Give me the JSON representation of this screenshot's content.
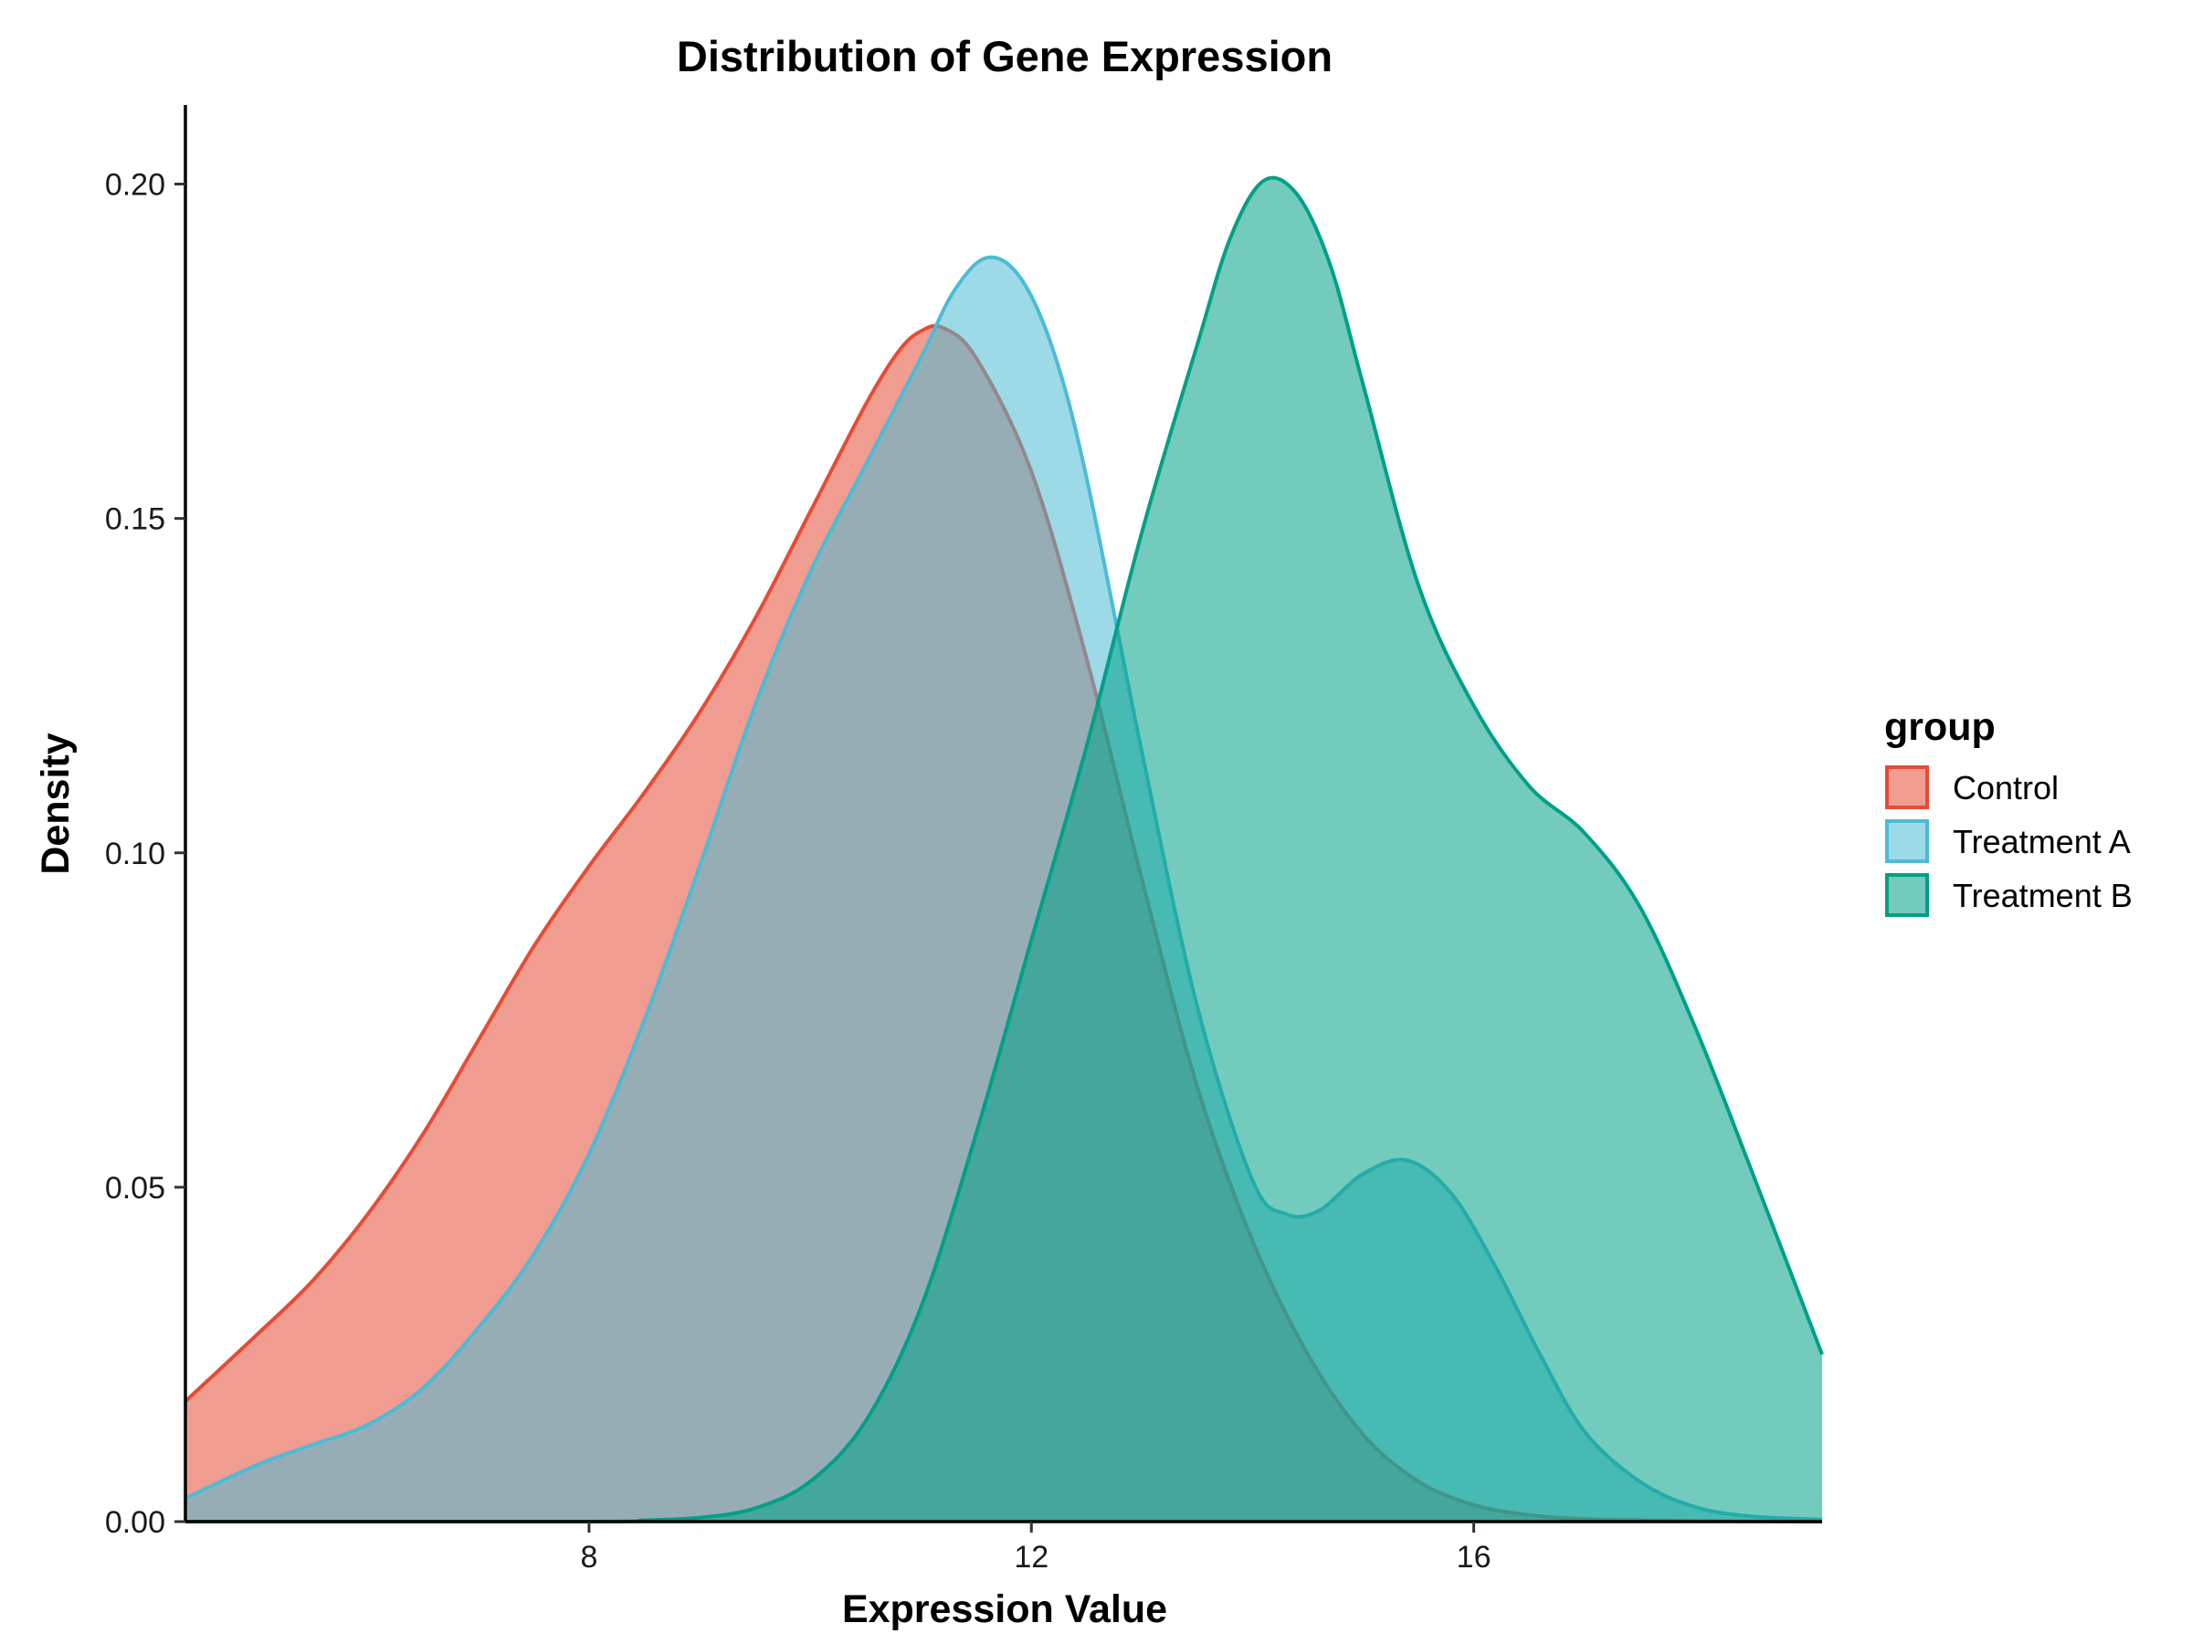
{
  "chart_data": {
    "type": "area",
    "subtype": "density",
    "title": "Distribution of Gene Expression",
    "xlabel": "Expression Value",
    "ylabel": "Density",
    "xlim": [
      4.35,
      19.15
    ],
    "ylim": [
      0,
      0.2125
    ],
    "x_ticks": [
      8,
      12,
      16
    ],
    "y_ticks": [
      0.0,
      0.05,
      0.1,
      0.15,
      0.2
    ],
    "y_tick_labels": [
      "0.00",
      "0.05",
      "0.10",
      "0.15",
      "0.20"
    ],
    "grid": false,
    "legend": {
      "title": "group",
      "position": "right"
    },
    "series": [
      {
        "name": "Control",
        "fill": "#E64B35",
        "stroke": "#E64B35",
        "opacity": 0.55,
        "points": [
          [
            4.35,
            0.018
          ],
          [
            5.0,
            0.028
          ],
          [
            5.5,
            0.036
          ],
          [
            6.0,
            0.046
          ],
          [
            6.5,
            0.058
          ],
          [
            7.0,
            0.072
          ],
          [
            7.5,
            0.086
          ],
          [
            8.0,
            0.098
          ],
          [
            8.5,
            0.109
          ],
          [
            9.0,
            0.121
          ],
          [
            9.5,
            0.135
          ],
          [
            10.0,
            0.151
          ],
          [
            10.5,
            0.167
          ],
          [
            10.8,
            0.175
          ],
          [
            11.0,
            0.178
          ],
          [
            11.2,
            0.1785
          ],
          [
            11.5,
            0.174
          ],
          [
            12.0,
            0.157
          ],
          [
            12.5,
            0.129
          ],
          [
            13.0,
            0.096
          ],
          [
            13.5,
            0.065
          ],
          [
            14.0,
            0.042
          ],
          [
            14.5,
            0.025
          ],
          [
            15.0,
            0.013
          ],
          [
            15.5,
            0.006
          ],
          [
            16.0,
            0.0025
          ],
          [
            16.5,
            0.001
          ],
          [
            17.0,
            0.0004
          ],
          [
            18.0,
            0.0001
          ],
          [
            19.15,
            0.0
          ]
        ]
      },
      {
        "name": "Treatment A",
        "fill": "#4DBBD5",
        "stroke": "#4DBBD5",
        "opacity": 0.55,
        "points": [
          [
            4.35,
            0.0035
          ],
          [
            5.0,
            0.0085
          ],
          [
            5.5,
            0.0115
          ],
          [
            6.0,
            0.0145
          ],
          [
            6.5,
            0.02
          ],
          [
            7.0,
            0.029
          ],
          [
            7.5,
            0.04
          ],
          [
            8.0,
            0.055
          ],
          [
            8.5,
            0.075
          ],
          [
            9.0,
            0.098
          ],
          [
            9.5,
            0.122
          ],
          [
            10.0,
            0.142
          ],
          [
            10.5,
            0.158
          ],
          [
            11.0,
            0.174
          ],
          [
            11.3,
            0.184
          ],
          [
            11.6,
            0.189
          ],
          [
            11.9,
            0.186
          ],
          [
            12.2,
            0.175
          ],
          [
            12.5,
            0.156
          ],
          [
            13.0,
            0.115
          ],
          [
            13.5,
            0.077
          ],
          [
            14.0,
            0.051
          ],
          [
            14.3,
            0.046
          ],
          [
            14.6,
            0.0465
          ],
          [
            15.0,
            0.052
          ],
          [
            15.4,
            0.054
          ],
          [
            15.8,
            0.049
          ],
          [
            16.2,
            0.038
          ],
          [
            16.6,
            0.025
          ],
          [
            17.0,
            0.0135
          ],
          [
            17.5,
            0.006
          ],
          [
            18.0,
            0.0022
          ],
          [
            18.5,
            0.0008
          ],
          [
            19.15,
            0.0003
          ]
        ]
      },
      {
        "name": "Treatment B",
        "fill": "#00A087",
        "stroke": "#00A087",
        "opacity": 0.55,
        "points": [
          [
            4.35,
            0.0
          ],
          [
            8.0,
            0.0
          ],
          [
            8.5,
            0.0002
          ],
          [
            9.0,
            0.0006
          ],
          [
            9.5,
            0.002
          ],
          [
            10.0,
            0.006
          ],
          [
            10.5,
            0.015
          ],
          [
            11.0,
            0.032
          ],
          [
            11.5,
            0.058
          ],
          [
            12.0,
            0.087
          ],
          [
            12.5,
            0.116
          ],
          [
            13.0,
            0.148
          ],
          [
            13.5,
            0.176
          ],
          [
            13.8,
            0.192
          ],
          [
            14.1,
            0.2005
          ],
          [
            14.4,
            0.1985
          ],
          [
            14.7,
            0.188
          ],
          [
            15.0,
            0.17
          ],
          [
            15.5,
            0.14
          ],
          [
            16.0,
            0.122
          ],
          [
            16.5,
            0.11
          ],
          [
            17.0,
            0.103
          ],
          [
            17.5,
            0.092
          ],
          [
            18.0,
            0.074
          ],
          [
            18.5,
            0.053
          ],
          [
            19.15,
            0.025
          ]
        ]
      }
    ]
  }
}
